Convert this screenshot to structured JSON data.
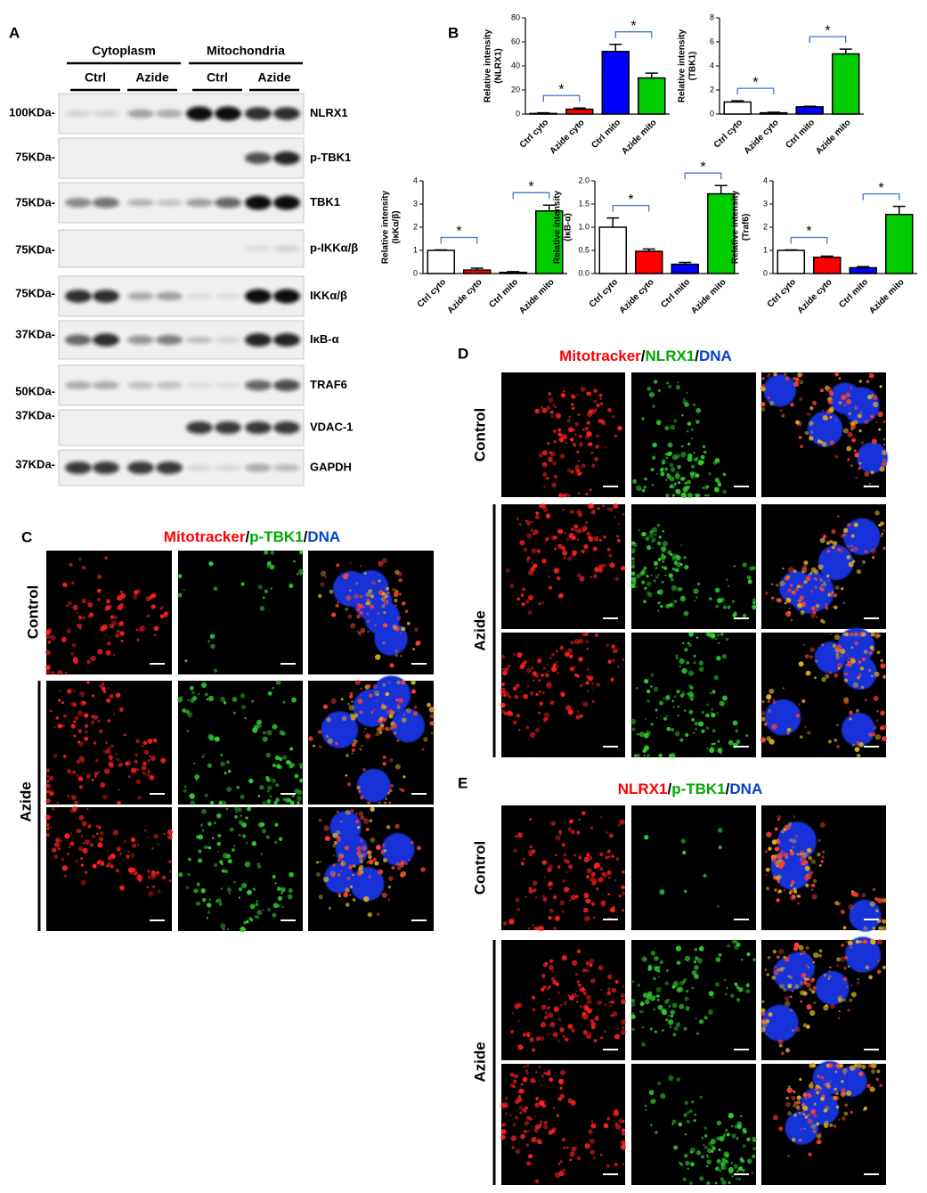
{
  "panel_a": {
    "label": "A",
    "groups": [
      {
        "name": "Cytoplasm",
        "subs": [
          "Ctrl",
          "Azide"
        ]
      },
      {
        "name": "Mitochondria",
        "subs": [
          "Ctrl",
          "Azide"
        ]
      }
    ],
    "blots": [
      {
        "marker": "100KDa-",
        "protein": "NLRX1"
      },
      {
        "marker": "75KDa-",
        "protein": "p-TBK1"
      },
      {
        "marker": "75KDa-",
        "protein": "TBK1"
      },
      {
        "marker": "75KDa-",
        "protein": "p-IKKα/β"
      },
      {
        "marker": "75KDa-",
        "protein": "IKKα/β"
      },
      {
        "marker": "37KDa-",
        "protein": "IκB-α"
      },
      {
        "marker": "50KDa-",
        "protein": "TRAF6"
      },
      {
        "marker": "37KDa-",
        "protein": "VDAC-1"
      },
      {
        "marker": "37KDa-",
        "protein": "GAPDH"
      }
    ]
  },
  "panel_b": {
    "label": "B"
  },
  "chart_data": [
    {
      "type": "bar",
      "y_label": [
        "Relative intensity",
        "(NLRX1)"
      ],
      "categories": [
        "Ctrl cyto",
        "Azide cyto",
        "Ctrl mito",
        "Azide mito"
      ],
      "values": [
        0.5,
        4,
        52,
        30
      ],
      "errors": [
        0.5,
        1,
        6,
        4
      ],
      "colors": [
        "#ffffff",
        "#ff0000",
        "#0000ff",
        "#00cc00"
      ],
      "ylim": [
        0,
        80
      ],
      "yticks": [
        0,
        20,
        40,
        60,
        80
      ],
      "annotations": [
        "*",
        "*"
      ]
    },
    {
      "type": "bar",
      "y_label": [
        "Relative intensity",
        "(TBK1)"
      ],
      "categories": [
        "Ctrl cyto",
        "Azide cyto",
        "Ctrl mito",
        "Azide mito"
      ],
      "values": [
        1.0,
        0.1,
        0.6,
        5.0
      ],
      "errors": [
        0.1,
        0.05,
        0.05,
        0.4
      ],
      "colors": [
        "#ffffff",
        "#ff0000",
        "#0000ff",
        "#00cc00"
      ],
      "ylim": [
        0,
        8
      ],
      "yticks": [
        0,
        2,
        4,
        6,
        8
      ],
      "annotations": [
        "*",
        "*"
      ]
    },
    {
      "type": "bar",
      "y_label": [
        "Relative intensity",
        "(IκKα/β)"
      ],
      "categories": [
        "Ctrl cyto",
        "Azide cyto",
        "Ctrl mito",
        "Azide mito"
      ],
      "values": [
        1.0,
        0.15,
        0.05,
        2.7
      ],
      "errors": [
        0.02,
        0.08,
        0.03,
        0.25
      ],
      "colors": [
        "#ffffff",
        "#ff0000",
        "#0000ff",
        "#00cc00"
      ],
      "ylim": [
        0,
        4
      ],
      "yticks": [
        0,
        1,
        2,
        3,
        4
      ],
      "annotations": [
        "*",
        "*"
      ]
    },
    {
      "type": "bar",
      "y_label": [
        "Relative intensity",
        "(IκB-α)"
      ],
      "categories": [
        "Ctrl cyto",
        "Azide cyto",
        "Ctrl mito",
        "Azide mito"
      ],
      "values": [
        1.0,
        0.48,
        0.2,
        1.72
      ],
      "errors": [
        0.2,
        0.05,
        0.04,
        0.18
      ],
      "colors": [
        "#ffffff",
        "#ff0000",
        "#0000ff",
        "#00cc00"
      ],
      "ylim": [
        0,
        2
      ],
      "yticks": [
        {
          "value": 0,
          "label": "0.0"
        },
        0.5,
        {
          "value": 1,
          "label": "1.0"
        },
        1.5,
        {
          "value": 2,
          "label": "2.0"
        }
      ],
      "annotations": [
        "*",
        "*"
      ]
    },
    {
      "type": "bar",
      "y_label": [
        "Relative intensity",
        "(Traf6)"
      ],
      "categories": [
        "Ctrl cyto",
        "Azide cyto",
        "Ctrl mito",
        "Azide mito"
      ],
      "values": [
        1.0,
        0.7,
        0.25,
        2.55
      ],
      "errors": [
        0.02,
        0.05,
        0.05,
        0.35
      ],
      "colors": [
        "#ffffff",
        "#ff0000",
        "#0000ff",
        "#00cc00"
      ],
      "ylim": [
        0,
        4
      ],
      "yticks": [
        0,
        1,
        2,
        3,
        4
      ],
      "annotations": [
        "*",
        "*"
      ]
    }
  ],
  "panel_c": {
    "label": "C",
    "title": [
      "Mitotracker",
      "/",
      "p-TBK1",
      "/",
      "DNA"
    ],
    "title_colors": [
      "#ff0000",
      "#000000",
      "#00aa00",
      "#000000",
      "#0044cc"
    ],
    "rows": [
      "Control",
      "Azide"
    ]
  },
  "panel_d": {
    "label": "D",
    "title": [
      "Mitotracker",
      "/",
      "NLRX1",
      "/",
      "DNA"
    ],
    "title_colors": [
      "#ff0000",
      "#000000",
      "#00aa00",
      "#000000",
      "#0044cc"
    ],
    "rows": [
      "Control",
      "Azide"
    ]
  },
  "panel_e": {
    "label": "E",
    "title": [
      "NLRX1",
      "/",
      "p-TBK1",
      "/",
      "DNA"
    ],
    "title_colors": [
      "#ff0000",
      "#000000",
      "#00aa00",
      "#000000",
      "#0044cc"
    ],
    "rows": [
      "Control",
      "Azide"
    ]
  }
}
